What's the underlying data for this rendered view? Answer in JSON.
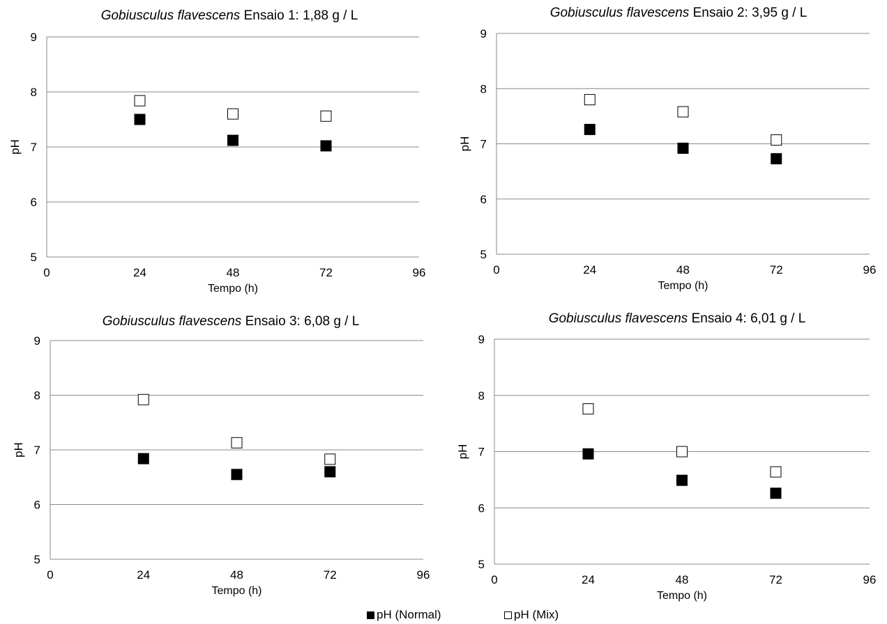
{
  "chart_data": [
    {
      "type": "scatter",
      "title_italic": "Gobiusculus flavescens",
      "title_rest": "Ensaio 1: 1,88 g / L",
      "xlabel": "Tempo (h)",
      "ylabel": "pH",
      "xlim": [
        0,
        96
      ],
      "ylim": [
        5,
        9
      ],
      "xticks": [
        0,
        24,
        48,
        72,
        96
      ],
      "yticks": [
        5,
        6,
        7,
        8,
        9
      ],
      "grid": "horizontal",
      "x": [
        24,
        48,
        72
      ],
      "series": [
        {
          "name": "pH (Normal)",
          "marker": "filled-square",
          "values": [
            7.5,
            7.12,
            7.02
          ]
        },
        {
          "name": "pH (Mix)",
          "marker": "open-square",
          "values": [
            7.84,
            7.6,
            7.56
          ]
        }
      ]
    },
    {
      "type": "scatter",
      "title_italic": "Gobiusculus flavescens",
      "title_rest": "Ensaio 2: 3,95 g / L",
      "xlabel": "Tempo (h)",
      "ylabel": "pH",
      "xlim": [
        0,
        96
      ],
      "ylim": [
        5,
        9
      ],
      "xticks": [
        0,
        24,
        48,
        72,
        96
      ],
      "yticks": [
        5,
        6,
        7,
        8,
        9
      ],
      "grid": "horizontal",
      "x": [
        24,
        48,
        72
      ],
      "series": [
        {
          "name": "pH (Normal)",
          "marker": "filled-square",
          "values": [
            7.26,
            6.92,
            6.73
          ]
        },
        {
          "name": "pH (Mix)",
          "marker": "open-square",
          "values": [
            7.8,
            7.58,
            7.07
          ]
        }
      ]
    },
    {
      "type": "scatter",
      "title_italic": "Gobiusculus flavescens",
      "title_rest": "Ensaio 3: 6,08 g / L",
      "xlabel": "Tempo (h)",
      "ylabel": "pH",
      "xlim": [
        0,
        96
      ],
      "ylim": [
        5,
        9
      ],
      "xticks": [
        0,
        24,
        48,
        72,
        96
      ],
      "yticks": [
        5,
        6,
        7,
        8,
        9
      ],
      "grid": "horizontal",
      "x": [
        24,
        48,
        72
      ],
      "series": [
        {
          "name": "pH (Normal)",
          "marker": "filled-square",
          "values": [
            6.84,
            6.55,
            6.6
          ]
        },
        {
          "name": "pH (Mix)",
          "marker": "open-square",
          "values": [
            7.92,
            7.13,
            6.83
          ]
        }
      ]
    },
    {
      "type": "scatter",
      "title_italic": "Gobiusculus flavescens",
      "title_rest": "Ensaio 4: 6,01 g / L",
      "xlabel": "Tempo (h)",
      "ylabel": "pH",
      "xlim": [
        0,
        96
      ],
      "ylim": [
        5,
        9
      ],
      "xticks": [
        0,
        24,
        48,
        72,
        96
      ],
      "yticks": [
        5,
        6,
        7,
        8,
        9
      ],
      "grid": "horizontal",
      "x": [
        24,
        48,
        72
      ],
      "series": [
        {
          "name": "pH (Normal)",
          "marker": "filled-square",
          "values": [
            6.96,
            6.49,
            6.26
          ]
        },
        {
          "name": "pH (Mix)",
          "marker": "open-square",
          "values": [
            7.76,
            7.0,
            6.64
          ]
        }
      ]
    }
  ],
  "legend": {
    "normal_label": "pH (Normal)",
    "mix_label": "pH (Mix)"
  }
}
